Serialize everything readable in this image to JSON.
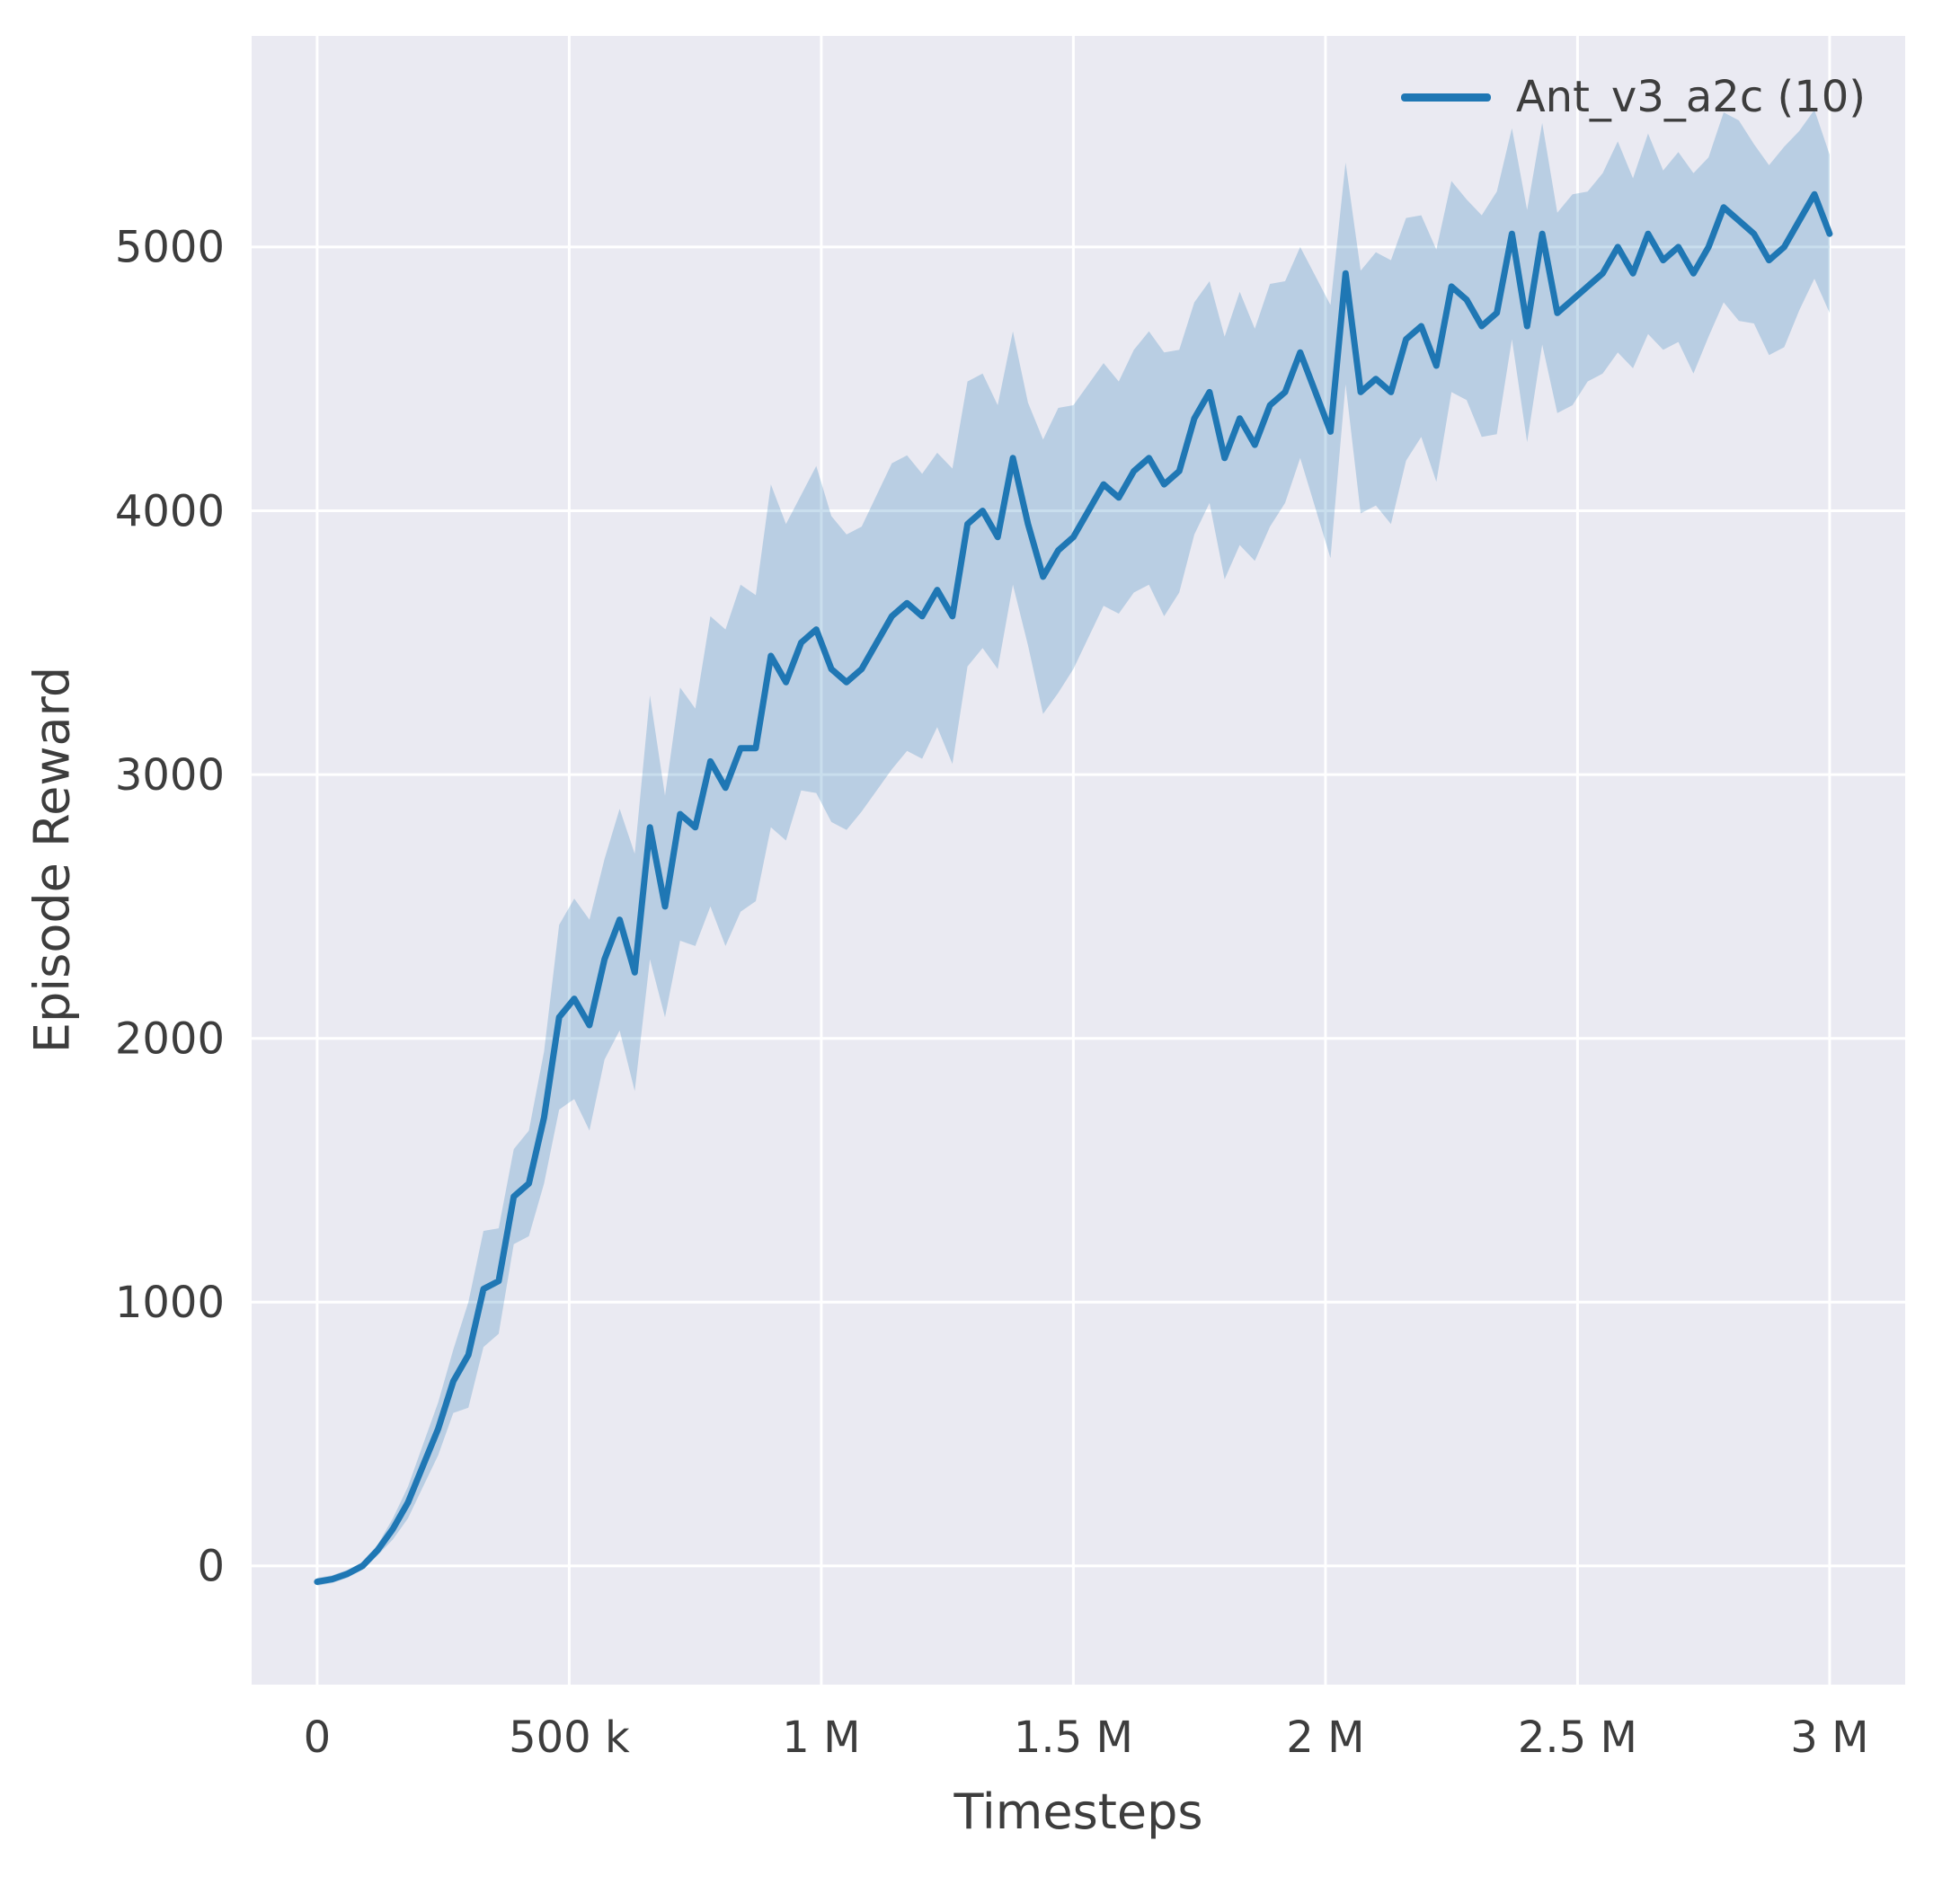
{
  "chart_data": {
    "type": "line",
    "title": "",
    "xlabel": "Timesteps",
    "ylabel": "Episode Reward",
    "legend": [
      {
        "label": "Ant_v3_a2c (10)",
        "color": "#1f77b4"
      }
    ],
    "legend_position": "upper right",
    "grid": true,
    "background": "#eaeaf2",
    "grid_color": "#ffffff",
    "line_color": "#1f77b4",
    "band_opacity": 0.24,
    "text_color": "#3d3d3d",
    "xlim": [
      -130000,
      3150000
    ],
    "ylim": [
      -450,
      5800
    ],
    "x_ticks": {
      "values": [
        0,
        500000,
        1000000,
        1500000,
        2000000,
        2500000,
        3000000
      ],
      "labels": [
        "0",
        "500 k",
        "1 M",
        "1.5 M",
        "2 M",
        "2.5 M",
        "3 M"
      ]
    },
    "y_ticks": {
      "values": [
        0,
        1000,
        2000,
        3000,
        4000,
        5000
      ],
      "labels": [
        "0",
        "1000",
        "2000",
        "3000",
        "4000",
        "5000"
      ]
    },
    "series": [
      {
        "name": "Ant_v3_a2c (10)",
        "x": [
          0,
          30000,
          60000,
          90000,
          120000,
          150000,
          180000,
          210000,
          240000,
          270000,
          300000,
          330000,
          360000,
          390000,
          420000,
          450000,
          480000,
          510000,
          540000,
          570000,
          600000,
          630000,
          660000,
          690000,
          720000,
          750000,
          780000,
          810000,
          840000,
          870000,
          900000,
          930000,
          960000,
          990000,
          1020000,
          1050000,
          1080000,
          1110000,
          1140000,
          1170000,
          1200000,
          1230000,
          1260000,
          1290000,
          1320000,
          1350000,
          1380000,
          1410000,
          1440000,
          1470000,
          1500000,
          1530000,
          1560000,
          1590000,
          1620000,
          1650000,
          1680000,
          1710000,
          1740000,
          1770000,
          1800000,
          1830000,
          1860000,
          1890000,
          1920000,
          1950000,
          1980000,
          2010000,
          2040000,
          2070000,
          2100000,
          2130000,
          2160000,
          2190000,
          2220000,
          2250000,
          2280000,
          2310000,
          2340000,
          2370000,
          2400000,
          2430000,
          2460000,
          2490000,
          2520000,
          2550000,
          2580000,
          2610000,
          2640000,
          2670000,
          2700000,
          2730000,
          2760000,
          2790000,
          2820000,
          2850000,
          2880000,
          2910000,
          2940000,
          2970000,
          3000000
        ],
        "mean": [
          -60,
          -50,
          -30,
          0,
          60,
          140,
          240,
          380,
          520,
          700,
          800,
          1050,
          1080,
          1400,
          1450,
          1700,
          2080,
          2150,
          2050,
          2300,
          2450,
          2250,
          2800,
          2500,
          2850,
          2800,
          3050,
          2950,
          3100,
          3100,
          3450,
          3350,
          3500,
          3550,
          3400,
          3350,
          3400,
          3500,
          3600,
          3650,
          3600,
          3700,
          3600,
          3950,
          4000,
          3900,
          4200,
          3950,
          3750,
          3850,
          3900,
          4000,
          4100,
          4050,
          4150,
          4200,
          4100,
          4150,
          4350,
          4450,
          4200,
          4350,
          4250,
          4400,
          4450,
          4600,
          4450,
          4300,
          4900,
          4450,
          4500,
          4450,
          4650,
          4700,
          4550,
          4850,
          4800,
          4700,
          4750,
          5050,
          4700,
          5050,
          4750,
          4800,
          4850,
          4900,
          5000,
          4900,
          5050,
          4950,
          5000,
          4900,
          5000,
          5150,
          5100,
          5050,
          4950,
          5000,
          5100,
          5200,
          5050
        ],
        "band_halfwidth": [
          15,
          15,
          15,
          15,
          20,
          40,
          60,
          80,
          100,
          120,
          200,
          220,
          200,
          180,
          200,
          250,
          350,
          380,
          400,
          380,
          420,
          450,
          500,
          420,
          480,
          450,
          550,
          600,
          620,
          580,
          650,
          600,
          560,
          620,
          580,
          560,
          540,
          560,
          580,
          560,
          540,
          520,
          560,
          540,
          520,
          500,
          480,
          460,
          520,
          540,
          500,
          480,
          460,
          440,
          460,
          480,
          500,
          460,
          440,
          420,
          460,
          480,
          440,
          460,
          420,
          400,
          440,
          480,
          420,
          460,
          480,
          500,
          460,
          420,
          440,
          400,
          380,
          420,
          460,
          400,
          440,
          420,
          380,
          400,
          360,
          380,
          400,
          360,
          380,
          340,
          360,
          380,
          340,
          360,
          380,
          340,
          360,
          380,
          340,
          320,
          300
        ]
      }
    ]
  }
}
